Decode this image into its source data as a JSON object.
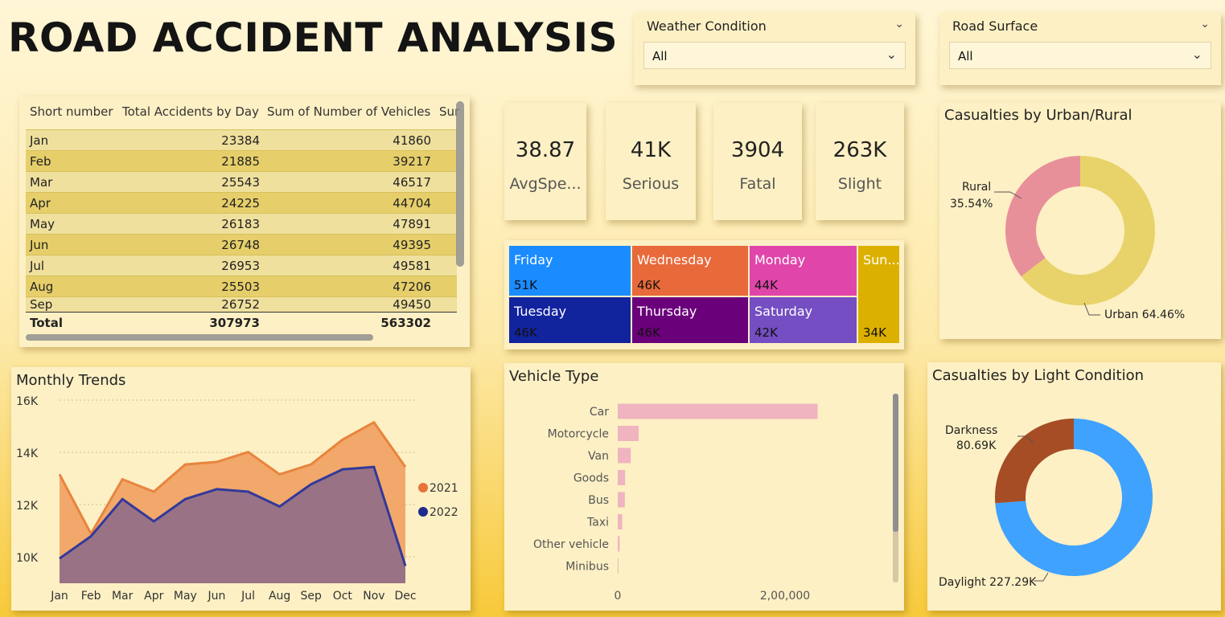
{
  "title": "ROAD ACCIDENT ANALYSIS",
  "slicers": {
    "weather": {
      "label": "Weather Condition",
      "value": "All"
    },
    "road": {
      "label": "Road Surface",
      "value": "All"
    }
  },
  "table": {
    "headers": [
      "Short number",
      "Total Accidents by Day",
      "Sum of Number of Vehicles",
      "Sur"
    ],
    "rows": [
      [
        "Jan",
        "23384",
        "41860"
      ],
      [
        "Feb",
        "21885",
        "39217"
      ],
      [
        "Mar",
        "25543",
        "46517"
      ],
      [
        "Apr",
        "24225",
        "44704"
      ],
      [
        "May",
        "26183",
        "47891"
      ],
      [
        "Jun",
        "26748",
        "49395"
      ],
      [
        "Jul",
        "26953",
        "49581"
      ],
      [
        "Aug",
        "25503",
        "47206"
      ],
      [
        "Sep",
        "26752",
        "49450"
      ]
    ],
    "total": [
      "Total",
      "307973",
      "563302"
    ]
  },
  "kpis": [
    {
      "value": "38.87",
      "label": "AvgSpe..."
    },
    {
      "value": "41K",
      "label": "Serious"
    },
    {
      "value": "3904",
      "label": "Fatal"
    },
    {
      "value": "263K",
      "label": "Slight"
    }
  ],
  "days": [
    {
      "name": "Friday",
      "value": "51K",
      "color": "#1a8cff"
    },
    {
      "name": "Wednesday",
      "value": "46K",
      "color": "#e8693a"
    },
    {
      "name": "Monday",
      "value": "44K",
      "color": "#e046aa"
    },
    {
      "name": "Sun...",
      "value": "34K",
      "color": "#dcb000"
    },
    {
      "name": "Tuesday",
      "value": "46K",
      "color": "#12239e"
    },
    {
      "name": "Thursday",
      "value": "46K",
      "color": "#6b007b"
    },
    {
      "name": "Saturday",
      "value": "42K",
      "color": "#744ec2"
    }
  ],
  "urban_rural": {
    "title": "Casualties by Urban/Rural",
    "rural_label": "Rural",
    "rural_pct": "35.54%",
    "urban_label": "Urban 64.46%",
    "colors": {
      "urban": "#e8d36a",
      "rural": "#e8909a"
    }
  },
  "light": {
    "title": "Casualties by Light Condition",
    "dark_label": "Darkness",
    "dark_value": "80.69K",
    "day_label": "Daylight 227.29K",
    "colors": {
      "day": "#3fa2ff",
      "dark": "#a64d25"
    }
  },
  "chart_data": [
    {
      "type": "area",
      "title": "Monthly Trends",
      "categories": [
        "Jan",
        "Feb",
        "Mar",
        "Apr",
        "May",
        "Jun",
        "Jul",
        "Aug",
        "Sep",
        "Oct",
        "Nov",
        "Dec"
      ],
      "series": [
        {
          "name": "2021",
          "color": "#f0a060",
          "values": [
            13400,
            11000,
            13200,
            12700,
            13800,
            13900,
            14300,
            13400,
            13800,
            14800,
            15500,
            13700
          ]
        },
        {
          "name": "2022",
          "color": "#1f2a8e",
          "values": [
            10000,
            10900,
            12400,
            11500,
            12400,
            12800,
            12700,
            12100,
            13000,
            13600,
            13700,
            9700
          ]
        }
      ],
      "yticks": [
        "16K",
        "14K",
        "12K",
        "10K"
      ],
      "ylim": [
        9000,
        16400
      ]
    },
    {
      "type": "bar",
      "title": "Vehicle Type",
      "categories": [
        "Car",
        "Motorcycle",
        "Van",
        "Goods",
        "Bus",
        "Taxi",
        "Other vehicle",
        "Minibus"
      ],
      "values": [
        239000,
        25000,
        15500,
        8800,
        8500,
        5300,
        2300,
        900
      ],
      "xticks": [
        "0",
        "2,00,000"
      ],
      "xlim": [
        0,
        260000
      ]
    }
  ]
}
